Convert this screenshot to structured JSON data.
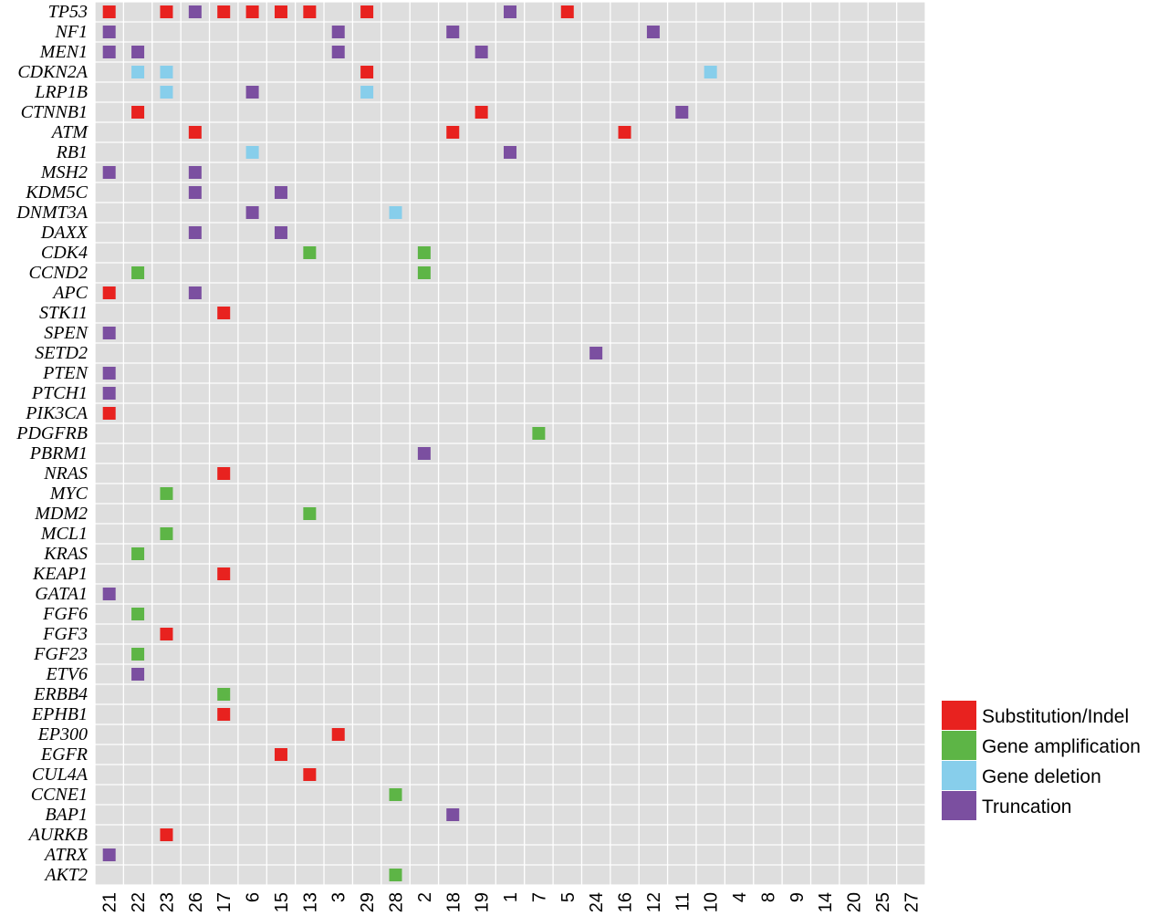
{
  "chart_data": {
    "type": "heatmap",
    "genes": [
      "TP53",
      "NF1",
      "MEN1",
      "CDKN2A",
      "LRP1B",
      "CTNNB1",
      "ATM",
      "RB1",
      "MSH2",
      "KDM5C",
      "DNMT3A",
      "DAXX",
      "CDK4",
      "CCND2",
      "APC",
      "STK11",
      "SPEN",
      "SETD2",
      "PTEN",
      "PTCH1",
      "PIK3CA",
      "PDGFRB",
      "PBRM1",
      "NRAS",
      "MYC",
      "MDM2",
      "MCL1",
      "KRAS",
      "KEAP1",
      "GATA1",
      "FGF6",
      "FGF3",
      "FGF23",
      "ETV6",
      "ERBB4",
      "EPHB1",
      "EP300",
      "EGFR",
      "CUL4A",
      "CCNE1",
      "BAP1",
      "AURKB",
      "ATRX",
      "AKT2"
    ],
    "samples": [
      "21",
      "22",
      "23",
      "26",
      "17",
      "6",
      "15",
      "13",
      "3",
      "29",
      "28",
      "2",
      "18",
      "19",
      "1",
      "7",
      "5",
      "24",
      "16",
      "12",
      "11",
      "10",
      "4",
      "8",
      "9",
      "14",
      "20",
      "25",
      "27"
    ],
    "legend": [
      {
        "key": "S",
        "label": "Substitution/Indel",
        "color": "#e8221f"
      },
      {
        "key": "A",
        "label": "Gene amplification",
        "color": "#5db546"
      },
      {
        "key": "D",
        "label": "Gene deletion",
        "color": "#87ceeb"
      },
      {
        "key": "T",
        "label": "Truncation",
        "color": "#7b4fa0"
      }
    ],
    "mutations": [
      [
        "TP53",
        "21",
        "S"
      ],
      [
        "TP53",
        "23",
        "S"
      ],
      [
        "TP53",
        "26",
        "T"
      ],
      [
        "TP53",
        "17",
        "S"
      ],
      [
        "TP53",
        "6",
        "S"
      ],
      [
        "TP53",
        "15",
        "S"
      ],
      [
        "TP53",
        "13",
        "S"
      ],
      [
        "TP53",
        "29",
        "S"
      ],
      [
        "TP53",
        "1",
        "T"
      ],
      [
        "TP53",
        "5",
        "S"
      ],
      [
        "NF1",
        "21",
        "T"
      ],
      [
        "NF1",
        "3",
        "T"
      ],
      [
        "NF1",
        "18",
        "T"
      ],
      [
        "NF1",
        "12",
        "T"
      ],
      [
        "MEN1",
        "21",
        "T"
      ],
      [
        "MEN1",
        "22",
        "T"
      ],
      [
        "MEN1",
        "3",
        "T"
      ],
      [
        "MEN1",
        "19",
        "T"
      ],
      [
        "CDKN2A",
        "22",
        "D"
      ],
      [
        "CDKN2A",
        "23",
        "D"
      ],
      [
        "CDKN2A",
        "29",
        "S"
      ],
      [
        "CDKN2A",
        "10",
        "D"
      ],
      [
        "LRP1B",
        "23",
        "D"
      ],
      [
        "LRP1B",
        "6",
        "T"
      ],
      [
        "LRP1B",
        "29",
        "D"
      ],
      [
        "CTNNB1",
        "22",
        "S"
      ],
      [
        "CTNNB1",
        "19",
        "S"
      ],
      [
        "CTNNB1",
        "11",
        "T"
      ],
      [
        "ATM",
        "26",
        "S"
      ],
      [
        "ATM",
        "18",
        "S"
      ],
      [
        "ATM",
        "16",
        "S"
      ],
      [
        "RB1",
        "6",
        "D"
      ],
      [
        "RB1",
        "1",
        "T"
      ],
      [
        "MSH2",
        "21",
        "T"
      ],
      [
        "MSH2",
        "26",
        "T"
      ],
      [
        "KDM5C",
        "26",
        "T"
      ],
      [
        "KDM5C",
        "15",
        "T"
      ],
      [
        "DNMT3A",
        "6",
        "T"
      ],
      [
        "DNMT3A",
        "28",
        "D"
      ],
      [
        "DAXX",
        "26",
        "T"
      ],
      [
        "DAXX",
        "15",
        "T"
      ],
      [
        "CDK4",
        "13",
        "A"
      ],
      [
        "CDK4",
        "2",
        "A"
      ],
      [
        "CCND2",
        "22",
        "A"
      ],
      [
        "CCND2",
        "2",
        "A"
      ],
      [
        "APC",
        "21",
        "S"
      ],
      [
        "APC",
        "26",
        "T"
      ],
      [
        "STK11",
        "17",
        "S"
      ],
      [
        "SPEN",
        "21",
        "T"
      ],
      [
        "SETD2",
        "24",
        "T"
      ],
      [
        "PTEN",
        "21",
        "T"
      ],
      [
        "PTCH1",
        "21",
        "T"
      ],
      [
        "PIK3CA",
        "21",
        "S"
      ],
      [
        "PDGFRB",
        "7",
        "A"
      ],
      [
        "PBRM1",
        "2",
        "T"
      ],
      [
        "NRAS",
        "17",
        "S"
      ],
      [
        "MYC",
        "23",
        "A"
      ],
      [
        "MDM2",
        "13",
        "A"
      ],
      [
        "MCL1",
        "23",
        "A"
      ],
      [
        "KRAS",
        "22",
        "A"
      ],
      [
        "KEAP1",
        "17",
        "S"
      ],
      [
        "GATA1",
        "21",
        "T"
      ],
      [
        "FGF6",
        "22",
        "A"
      ],
      [
        "FGF3",
        "23",
        "S"
      ],
      [
        "FGF23",
        "22",
        "A"
      ],
      [
        "ETV6",
        "22",
        "T"
      ],
      [
        "ERBB4",
        "17",
        "A"
      ],
      [
        "EPHB1",
        "17",
        "S"
      ],
      [
        "EP300",
        "3",
        "S"
      ],
      [
        "EGFR",
        "15",
        "S"
      ],
      [
        "CUL4A",
        "13",
        "S"
      ],
      [
        "CCNE1",
        "28",
        "A"
      ],
      [
        "BAP1",
        "18",
        "T"
      ],
      [
        "AURKB",
        "23",
        "S"
      ],
      [
        "ATRX",
        "21",
        "T"
      ],
      [
        "AKT2",
        "28",
        "A"
      ]
    ],
    "grid": true,
    "legend_position": "bottom-right",
    "background_color": "#dedede"
  }
}
